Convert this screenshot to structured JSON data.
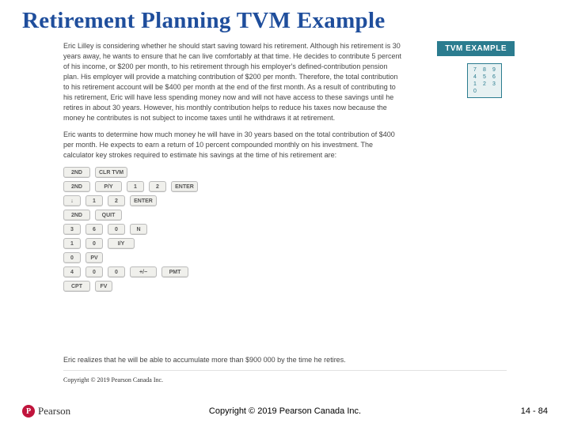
{
  "title": "Retirement Planning TVM Example",
  "tvm_badge": "TVM EXAMPLE",
  "calc_pad": [
    [
      "7",
      "8",
      "9"
    ],
    [
      "4",
      "5",
      "6"
    ],
    [
      "1",
      "2",
      "3"
    ],
    [
      "0",
      "",
      ""
    ]
  ],
  "para1": "Eric Lilley is considering whether he should start saving toward his retirement. Although his retirement is 30 years away, he wants to ensure that he can live comfortably at that time. He decides to contribute 5 percent of his income, or $200 per month, to his retirement through his employer's defined-contribution pension plan. His employer will provide a matching contribution of $200 per month. Therefore, the total contribution to his retirement account will be $400 per month at the end of the first month. As a result of contributing to his retirement, Eric will have less spending money now and will not have access to these savings until he retires in about 30 years. However, his monthly contribution helps to reduce his taxes now because the money he contributes is not subject to income taxes until he withdraws it at retirement.",
  "para2": "Eric wants to determine how much money he will have in 30 years based on the total contribution of $400 per month. He expects to earn a return of 10 percent compounded monthly on his investment. The calculator key strokes required to estimate his savings at the time of his retirement are:",
  "conclusion": "Eric realizes that he will be able to accumulate more than $900 000 by the time he retires.",
  "keystrokes": [
    [
      "2ND",
      "CLR TVM"
    ],
    [
      "2ND",
      "P/Y",
      "1",
      "2",
      "ENTER"
    ],
    [
      "↓",
      "1",
      "2",
      "ENTER"
    ],
    [
      "2ND",
      "QUIT"
    ],
    [
      "3",
      "6",
      "0",
      "N"
    ],
    [
      "1",
      "0",
      "I/Y"
    ],
    [
      "0",
      "PV"
    ],
    [
      "4",
      "0",
      "0",
      "+/−",
      "PMT"
    ],
    [
      "CPT",
      "FV"
    ]
  ],
  "inner_copyright": "Copyright © 2019 Pearson Canada Inc.",
  "footer_logo_letter": "P",
  "footer_logo_text": "Pearson",
  "footer_copyright": "Copyright © 2019 Pearson Canada Inc.",
  "slide_number": "14 - 84",
  "colors": {
    "title": "#1f4e9c",
    "badge_bg": "#2b7c8f",
    "logo_bg": "#c0143c"
  }
}
